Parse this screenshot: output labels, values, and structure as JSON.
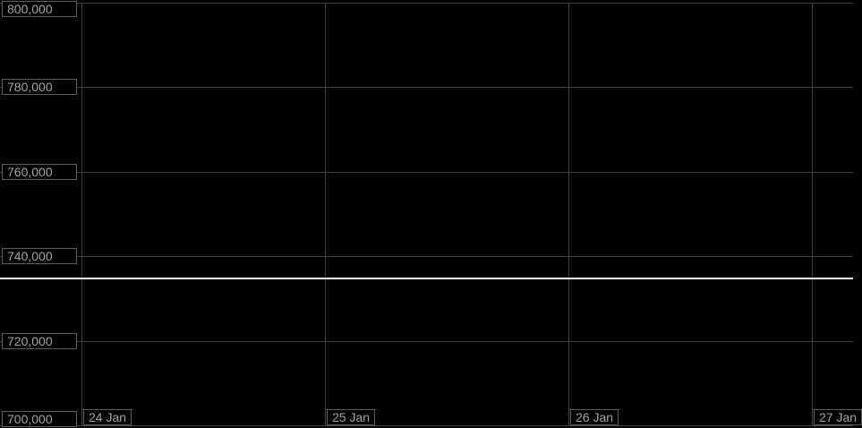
{
  "colors": {
    "background": "#000000",
    "gridline": "#3f3f3f",
    "axis_label_text": "#a3a3a3",
    "axis_label_border": "#5c5c5c",
    "price_line": "#ffffff"
  },
  "chart_data": {
    "type": "line",
    "x_axis": {
      "type": "datetime",
      "tick_labels": [
        "24 Jan",
        "25 Jan",
        "26 Jan",
        "27 Jan"
      ]
    },
    "y_axis": {
      "min": 700000,
      "max": 800000,
      "tick_interval": 20000,
      "tick_values": [
        800000,
        780000,
        760000,
        740000,
        720000,
        700000
      ],
      "tick_labels": [
        "800,000",
        "780,000",
        "760,000",
        "740,000",
        "720,000",
        "700,000"
      ]
    },
    "series": [
      {
        "name": "current-price-line",
        "type": "horizontal_line",
        "value": 734700,
        "color": "#ffffff",
        "note": "flat white price line spanning full chart width; no other data visible on chart"
      }
    ],
    "grid": true,
    "legend": false
  }
}
